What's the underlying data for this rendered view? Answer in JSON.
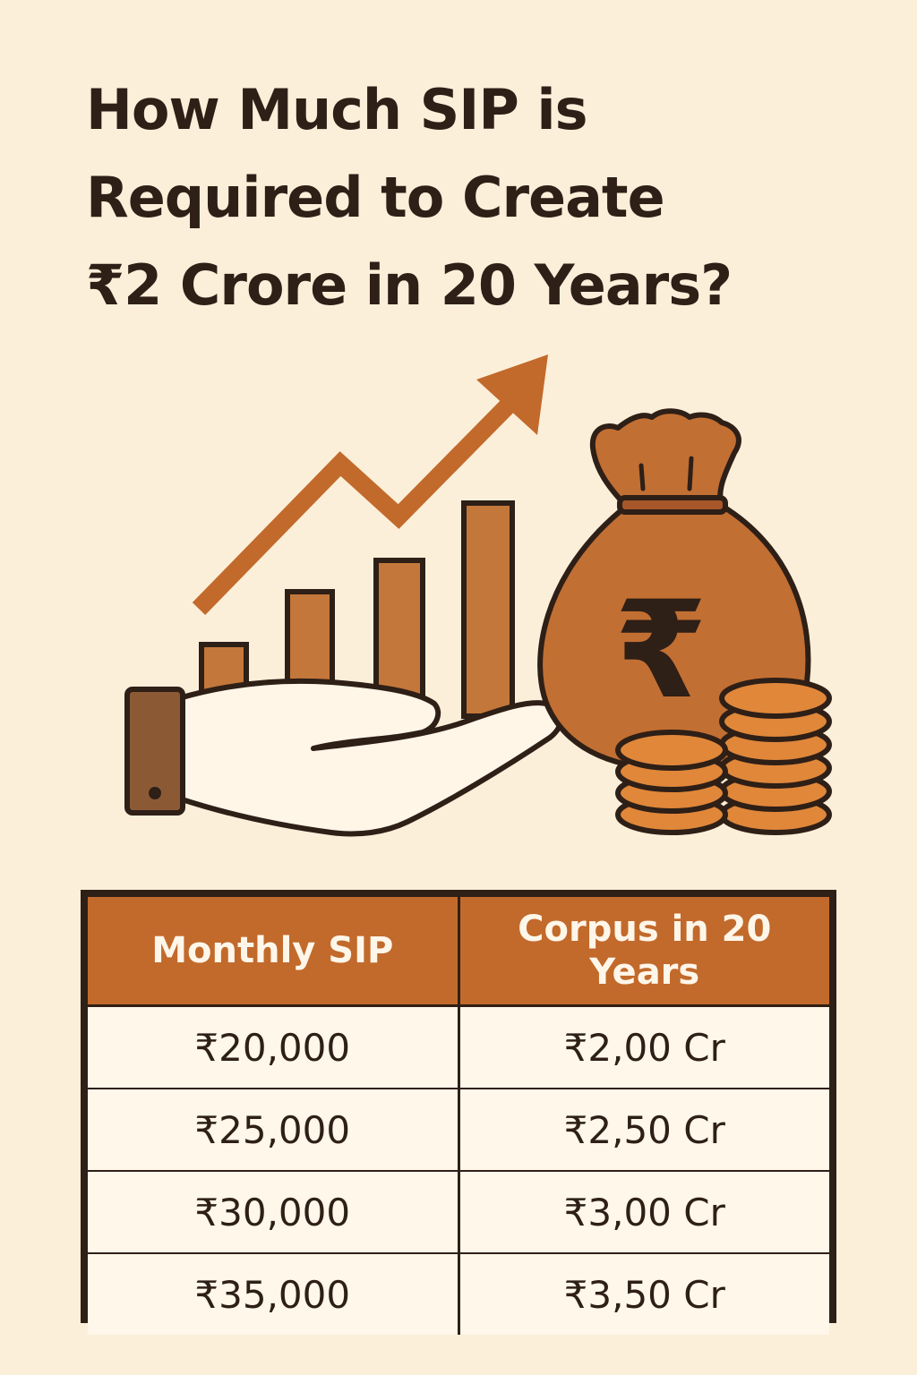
{
  "title": {
    "line1": "How Much SIP is",
    "line2": "Required to Create",
    "line3": "₹2 Crore in 20 Years?"
  },
  "illustration": {
    "icons": [
      "growth-arrow-icon",
      "bar-chart-icon",
      "open-hand-icon",
      "money-bag-icon",
      "rupee-icon",
      "coin-stack-icon"
    ],
    "colors": {
      "primary": "#c26a2b",
      "bar": "#c4773a",
      "bag": "#c26f33",
      "coin": "#e0873a",
      "sleeve": "#8b5a35",
      "outline": "#2e1f17",
      "background": "#fcefd9"
    }
  },
  "table": {
    "headers": [
      "Monthly SIP",
      "Corpus in 20 Years"
    ],
    "rows": [
      [
        "₹20,000",
        "₹2,00 Cr"
      ],
      [
        "₹25,000",
        "₹2,50 Cr"
      ],
      [
        "₹30,000",
        "₹3,00 Cr"
      ],
      [
        "₹35,000",
        "₹3,50 Cr"
      ]
    ]
  }
}
